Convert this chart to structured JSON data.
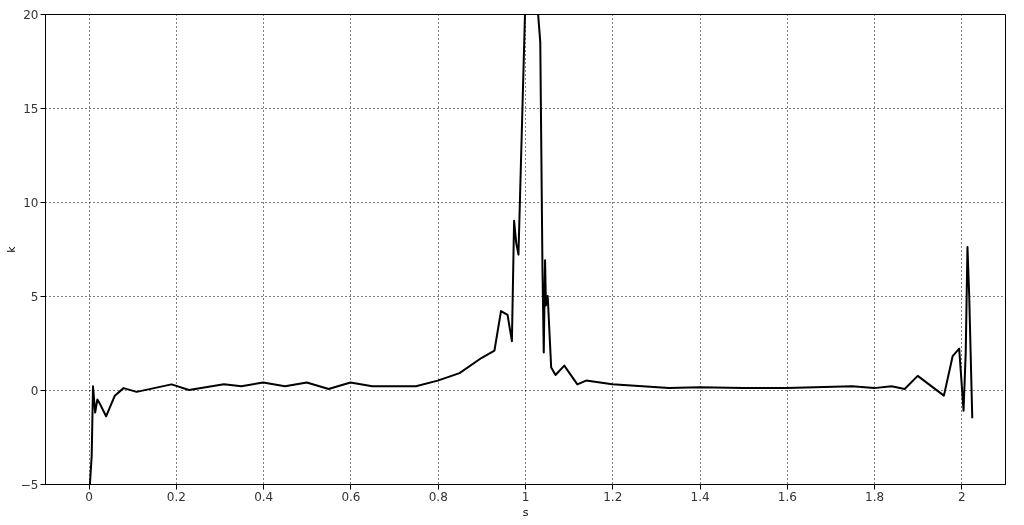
{
  "chart_data": {
    "type": "line",
    "xlabel": "s",
    "ylabel": "k",
    "xlim": [
      -0.1,
      2.1
    ],
    "xticks": [
      0,
      0.2,
      0.4,
      0.6,
      0.8,
      1,
      1.2,
      1.4,
      1.6,
      1.8,
      2
    ],
    "ylim": [
      -5,
      20
    ],
    "yticks": [
      -5,
      0,
      5,
      10,
      15,
      20
    ],
    "grid": true,
    "line_style": "solid",
    "marker": "none",
    "series": [
      {
        "color": "#000000",
        "x": [
          0.003,
          0.007,
          0.01,
          0.015,
          0.02,
          0.025,
          0.04,
          0.06,
          0.08,
          0.11,
          0.19,
          0.23,
          0.31,
          0.35,
          0.4,
          0.45,
          0.5,
          0.55,
          0.6,
          0.65,
          0.75,
          0.8,
          0.85,
          0.9,
          0.93,
          0.945,
          0.96,
          0.97,
          0.975,
          0.98,
          0.985,
          1.0,
          1.03,
          1.035,
          1.04,
          1.043,
          1.046,
          1.048,
          1.052,
          1.06,
          1.07,
          1.09,
          1.12,
          1.14,
          1.2,
          1.33,
          1.4,
          1.5,
          1.6,
          1.75,
          1.8,
          1.84,
          1.87,
          1.9,
          1.96,
          1.98,
          1.995,
          2.005,
          2.01,
          2.014,
          2.018,
          2.025
        ],
        "values": [
          -5,
          -3.5,
          0.2,
          -1.2,
          -0.5,
          -0.7,
          -1.4,
          -0.3,
          0.1,
          -0.1,
          0.3,
          0,
          0.3,
          0.2,
          0.4,
          0.2,
          0.4,
          0.05,
          0.4,
          0.2,
          0.2,
          0.5,
          0.9,
          1.7,
          2.1,
          4.2,
          4.0,
          2.6,
          9.0,
          7.8,
          7.2,
          20,
          20,
          18.5,
          6.5,
          2.0,
          6.9,
          4.5,
          5.0,
          1.2,
          0.8,
          1.3,
          0.3,
          0.5,
          0.3,
          0.1,
          0.15,
          0.1,
          0.1,
          0.2,
          0.1,
          0.2,
          0.05,
          0.75,
          -0.3,
          1.8,
          2.2,
          -1.1,
          2.0,
          7.6,
          5.0,
          -1.5
        ]
      }
    ]
  }
}
